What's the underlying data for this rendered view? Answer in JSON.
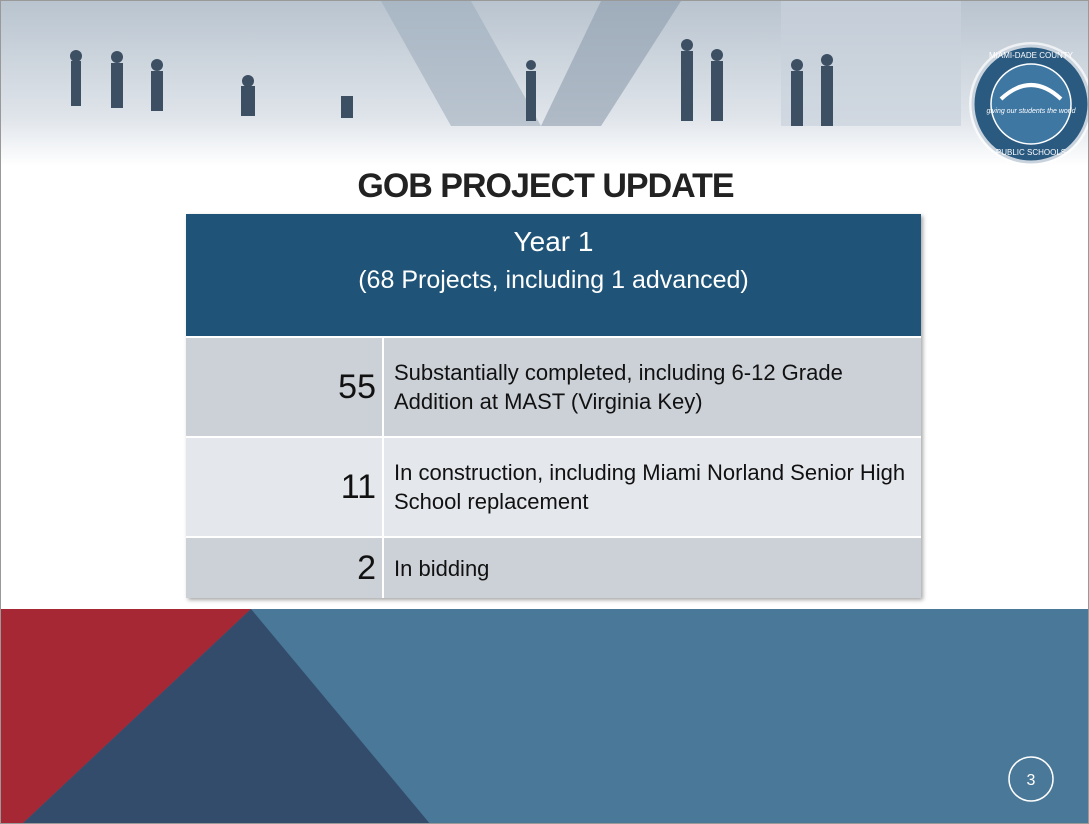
{
  "slide": {
    "logo": {
      "top_text": "MIAMI-DADE COUNTY",
      "tagline": "giving our students the world",
      "bottom_text": "PUBLIC SCHOOLS"
    },
    "title": "GOB PROJECT UPDATE",
    "table": {
      "header": {
        "title": "Year 1",
        "subtitle": "(68 Projects, including 1 advanced)"
      },
      "rows": [
        {
          "count": "55",
          "text": "Substantially completed, including 6-12 Grade Addition at MAST (Virginia Key)"
        },
        {
          "count": "11",
          "text": "In construction, including Miami Norland Senior High School replacement"
        },
        {
          "count": "2",
          "text": "In bidding"
        }
      ]
    },
    "page_number": "3"
  }
}
